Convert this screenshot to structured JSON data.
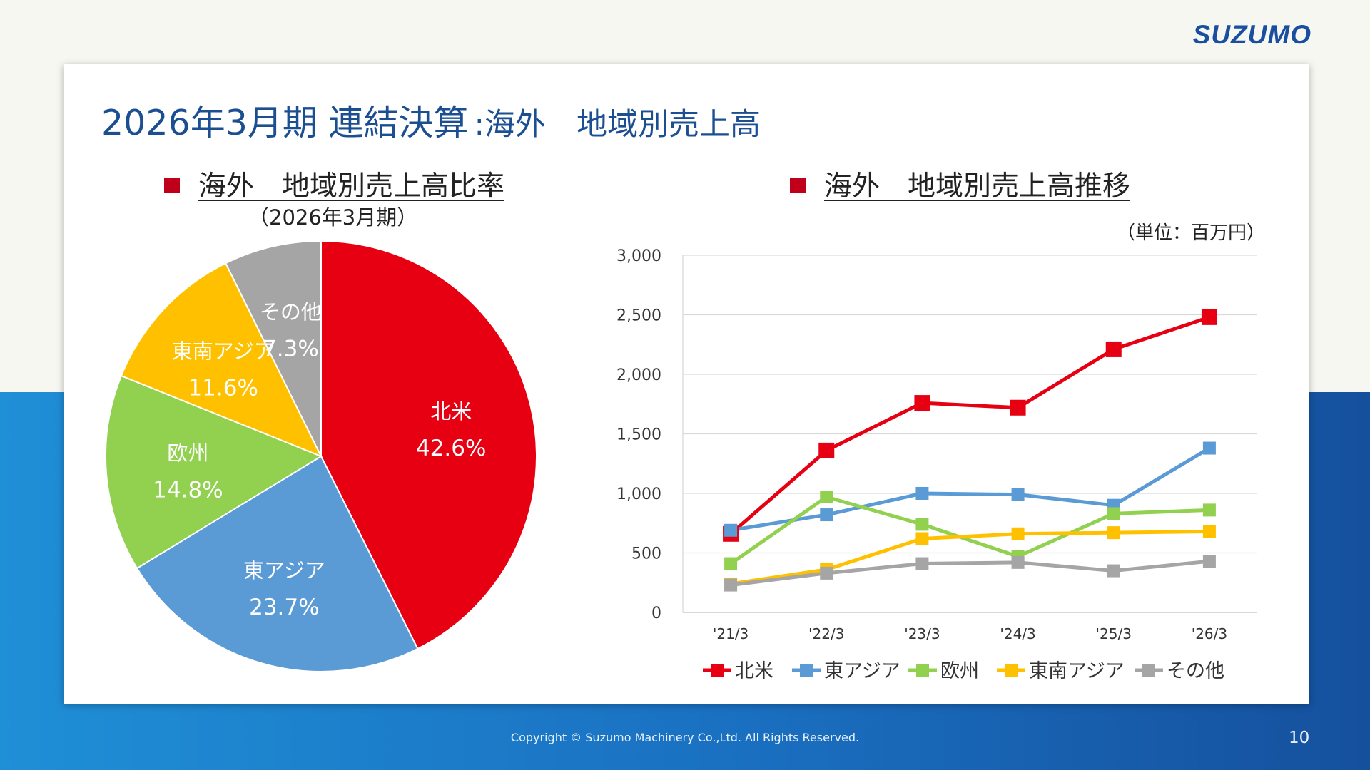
{
  "logo": "SUZUMO",
  "title": {
    "main": "2026年3月期 連結決算",
    "sub": ":海外　地域別売上高"
  },
  "pie_section": {
    "heading": "海外　地域別売上高比率",
    "date": "（2026年3月期）"
  },
  "line_section": {
    "heading": "海外　地域別売上高推移",
    "unit": "（単位：百万円）"
  },
  "chart_data": [
    {
      "type": "pie",
      "labels": [
        "北米",
        "東アジア",
        "欧州",
        "東南アジア",
        "その他"
      ],
      "values": [
        42.6,
        23.7,
        14.8,
        11.6,
        7.3
      ],
      "value_labels": [
        "42.6%",
        "23.7%",
        "14.8%",
        "11.6%",
        "7.3%"
      ],
      "colors": [
        "#e60012",
        "#5b9bd5",
        "#92d050",
        "#ffc000",
        "#a5a5a5"
      ]
    },
    {
      "type": "line",
      "x": [
        "'21/3",
        "'22/3",
        "'23/3",
        "'24/3",
        "'25/3",
        "'26/3"
      ],
      "ylim": [
        0,
        3000
      ],
      "yticks": [
        0,
        500,
        1000,
        1500,
        2000,
        2500,
        3000
      ],
      "ytick_labels": [
        "0",
        "500",
        "1,000",
        "1,500",
        "2,000",
        "2,500",
        "3,000"
      ],
      "grid": true,
      "legend": "bottom",
      "series": [
        {
          "name": "北米",
          "color": "#e60012",
          "values": [
            660,
            1360,
            1760,
            1720,
            2210,
            2480
          ]
        },
        {
          "name": "東アジア",
          "color": "#5b9bd5",
          "values": [
            690,
            820,
            1000,
            990,
            900,
            1380
          ]
        },
        {
          "name": "欧州",
          "color": "#92d050",
          "values": [
            410,
            970,
            740,
            470,
            830,
            860
          ]
        },
        {
          "name": "東南アジア",
          "color": "#ffc000",
          "values": [
            240,
            360,
            620,
            660,
            670,
            680
          ]
        },
        {
          "name": "その他",
          "color": "#a5a5a5",
          "values": [
            230,
            330,
            410,
            420,
            350,
            430
          ]
        }
      ]
    }
  ],
  "footer": {
    "copyright": "Copyright © Suzumo Machinery Co.,Ltd. All Rights Reserved.",
    "page_number": "10"
  }
}
